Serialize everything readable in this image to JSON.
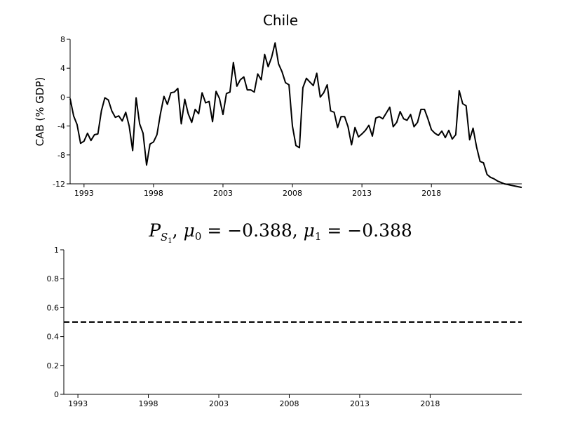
{
  "chart_data": [
    {
      "type": "line",
      "title": "Chile",
      "ylabel": "CAB (% GDP)",
      "xlabel": "",
      "xlim": [
        1992.0,
        2024.5
      ],
      "ylim": [
        -12,
        8
      ],
      "xticks": [
        "1993",
        "1998",
        "2003",
        "2008",
        "2013",
        "2018"
      ],
      "yticks": [
        "8",
        "4",
        "0",
        "-4",
        "-8",
        "-12"
      ],
      "grid": false,
      "series": [
        {
          "x": [
            1992.0,
            1992.25,
            1992.5,
            1992.75,
            1993.0,
            1993.25,
            1993.5,
            1993.75,
            1994.0,
            1994.25,
            1994.5,
            1994.75,
            1995.0,
            1995.25,
            1995.5,
            1995.75,
            1996.0,
            1996.25,
            1996.5,
            1996.75,
            1997.0,
            1997.25,
            1997.5,
            1997.75,
            1998.0,
            1998.25,
            1998.5,
            1998.75,
            1999.0,
            1999.25,
            1999.5,
            1999.75,
            2000.0,
            2000.25,
            2000.5,
            2000.75,
            2001.0,
            2001.25,
            2001.5,
            2001.75,
            2002.0,
            2002.25,
            2002.5,
            2002.75,
            2003.0,
            2003.25,
            2003.5,
            2003.75,
            2004.0,
            2004.25,
            2004.5,
            2004.75,
            2005.0,
            2005.25,
            2005.5,
            2005.75,
            2006.0,
            2006.25,
            2006.5,
            2006.75,
            2007.0,
            2007.25,
            2007.5,
            2007.75,
            2008.0,
            2008.25,
            2008.5,
            2008.75,
            2009.0,
            2009.25,
            2009.5,
            2009.75,
            2010.0,
            2010.25,
            2010.5,
            2010.75,
            2011.0,
            2011.25,
            2011.5,
            2011.75,
            2012.0,
            2012.25,
            2012.5,
            2012.75,
            2013.0,
            2013.25,
            2013.5,
            2013.75,
            2014.0,
            2014.25,
            2014.5,
            2014.75,
            2015.0,
            2015.25,
            2015.5,
            2015.75,
            2016.0,
            2016.25,
            2016.5,
            2016.75,
            2017.0,
            2017.25,
            2017.5,
            2017.75,
            2018.0,
            2018.25,
            2018.5,
            2018.75,
            2019.0,
            2019.25,
            2019.5,
            2019.75,
            2020.0,
            2020.25,
            2020.5,
            2020.75,
            2021.0,
            2021.25,
            2021.5,
            2021.75,
            2022.0,
            2022.25,
            2022.5,
            2022.75,
            2023.0,
            2023.25,
            2023.5,
            2023.75,
            2024.0,
            2024.25,
            2024.5
          ],
          "values": [
            -0.2,
            -2.6,
            -3.8,
            -6.4,
            -6.1,
            -5.0,
            -6.0,
            -5.2,
            -5.1,
            -1.9,
            -0.1,
            -0.4,
            -1.9,
            -2.8,
            -2.6,
            -3.3,
            -2.1,
            -4.0,
            -7.4,
            -0.1,
            -3.7,
            -5.0,
            -9.4,
            -6.5,
            -6.2,
            -5.2,
            -2.3,
            0.1,
            -1.0,
            0.6,
            0.7,
            1.2,
            -3.7,
            -0.3,
            -2.3,
            -3.5,
            -1.7,
            -2.3,
            0.6,
            -0.8,
            -0.6,
            -3.4,
            0.8,
            -0.2,
            -2.4,
            0.5,
            0.7,
            4.8,
            1.5,
            2.4,
            2.8,
            1.0,
            1.0,
            0.7,
            3.2,
            2.4,
            5.9,
            4.2,
            5.5,
            7.5,
            4.6,
            3.5,
            2.0,
            1.7,
            -4.0,
            -6.7,
            -7.0,
            1.3,
            2.6,
            2.1,
            1.6,
            3.3,
            0.0,
            0.6,
            1.7,
            -1.9,
            -2.1,
            -4.2,
            -2.7,
            -2.7,
            -4.1,
            -6.6,
            -4.2,
            -5.5,
            -5.1,
            -4.6,
            -3.9,
            -5.4,
            -2.9,
            -2.7,
            -3.0,
            -2.2,
            -1.4,
            -4.1,
            -3.5,
            -2.0,
            -3.0,
            -3.2,
            -2.4,
            -4.1,
            -3.5,
            -1.7,
            -1.7,
            -3.0,
            -4.5,
            -5.0,
            -5.3,
            -4.7,
            -5.6,
            -4.6,
            -5.8,
            -5.2,
            0.9,
            -0.9,
            -1.2,
            -5.9,
            -4.3,
            -6.9,
            -8.9,
            -9.1,
            -10.7,
            -11.1,
            -11.3,
            -11.6,
            -11.8,
            -12.0,
            -12.1,
            -12.2,
            -12.3,
            -12.4,
            -12.5
          ]
        }
      ]
    },
    {
      "type": "line",
      "title": "",
      "title_parts": {
        "p": "P",
        "sub_s": "S",
        "sub_1": "1",
        "sep1": ", ",
        "mu": "μ",
        "mu0_sub": "0",
        "mu0_val": " = −0.388, ",
        "mu1_sub": "1",
        "mu1_val": " = −0.388"
      },
      "xlim": [
        1992.0,
        2024.5
      ],
      "ylim": [
        0,
        1
      ],
      "xticks": [
        "1993",
        "1998",
        "2003",
        "2008",
        "2013",
        "2018"
      ],
      "yticks": [
        "1",
        "0.8",
        "0.6",
        "0.4",
        "0.2",
        "0"
      ],
      "grid": false,
      "series": [
        {
          "x": [
            1992.0,
            2024.5
          ],
          "values": [
            0.5,
            0.5
          ],
          "style": "dashed"
        }
      ]
    }
  ]
}
